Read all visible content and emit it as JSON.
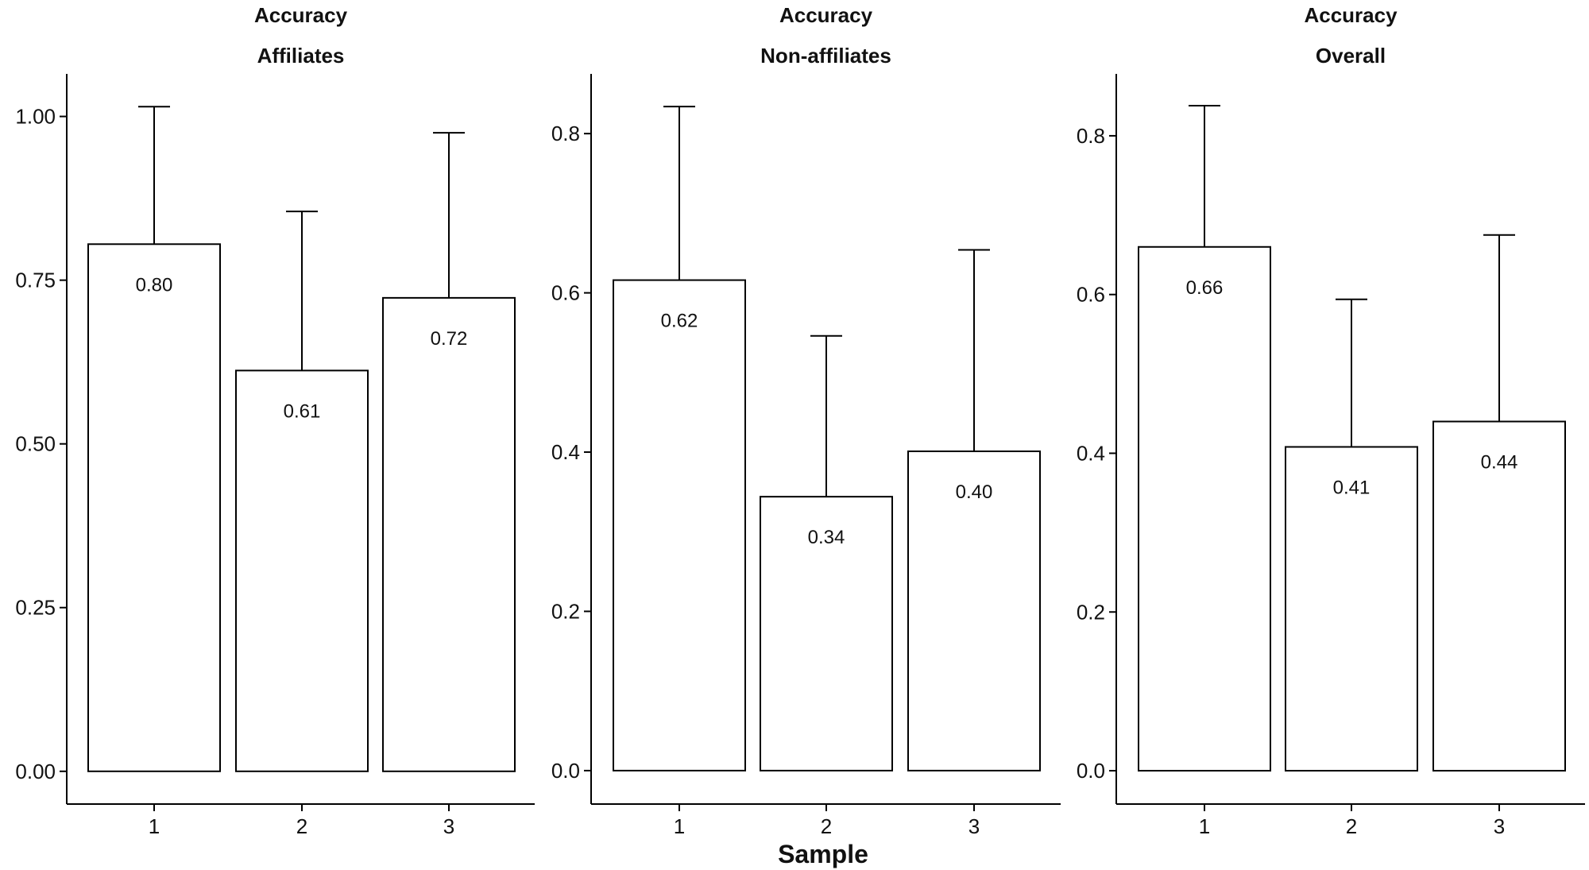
{
  "chart_data": [
    {
      "type": "bar",
      "title": "Accuracy",
      "subtitle": "Affiliates",
      "categories": [
        "1",
        "2",
        "3"
      ],
      "values": [
        0.805,
        0.612,
        0.723
      ],
      "error_upper": [
        1.015,
        0.855,
        0.975
      ],
      "value_labels": [
        "0.80",
        "0.61",
        "0.72"
      ],
      "ylim": [
        -0.05,
        1.065
      ],
      "yticks": [
        0.0,
        0.25,
        0.5,
        0.75,
        1.0
      ],
      "ytick_labels": [
        "0.00",
        "0.25",
        "0.50",
        "0.75",
        "1.00"
      ]
    },
    {
      "type": "bar",
      "title": "Accuracy",
      "subtitle": "Non-affiliates",
      "categories": [
        "1",
        "2",
        "3"
      ],
      "values": [
        0.616,
        0.344,
        0.401
      ],
      "error_upper": [
        0.834,
        0.546,
        0.654
      ],
      "value_labels": [
        "0.62",
        "0.34",
        "0.40"
      ],
      "ylim": [
        -0.042,
        0.875
      ],
      "yticks": [
        0.0,
        0.2,
        0.4,
        0.6,
        0.8
      ],
      "ytick_labels": [
        "0.0",
        "0.2",
        "0.4",
        "0.6",
        "0.8"
      ]
    },
    {
      "type": "bar",
      "title": "Accuracy",
      "subtitle": "Overall",
      "categories": [
        "1",
        "2",
        "3"
      ],
      "values": [
        0.66,
        0.408,
        0.44
      ],
      "error_upper": [
        0.838,
        0.594,
        0.675
      ],
      "value_labels": [
        "0.66",
        "0.41",
        "0.44"
      ],
      "ylim": [
        -0.042,
        0.878
      ],
      "yticks": [
        0.0,
        0.2,
        0.4,
        0.6,
        0.8
      ],
      "ytick_labels": [
        "0.0",
        "0.2",
        "0.4",
        "0.6",
        "0.8"
      ]
    }
  ],
  "xlabel": "Sample",
  "colors": {
    "bar_fill": "#ffffff",
    "stroke": "#000000"
  }
}
